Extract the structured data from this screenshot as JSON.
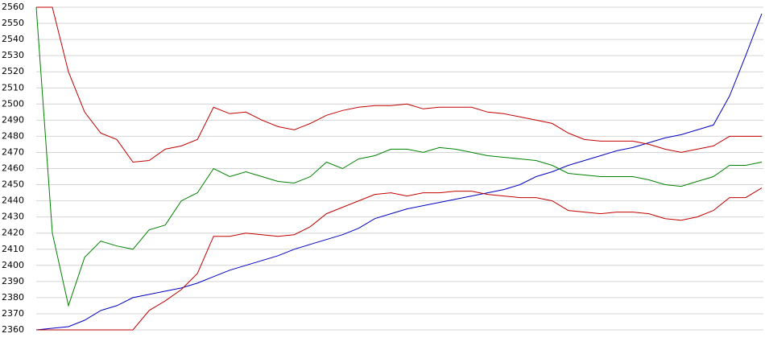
{
  "chart_data": {
    "type": "line",
    "ylim": [
      2360,
      2560
    ],
    "yticks": [
      2360,
      2370,
      2380,
      2390,
      2400,
      2410,
      2420,
      2430,
      2440,
      2450,
      2460,
      2470,
      2480,
      2490,
      2500,
      2510,
      2520,
      2530,
      2540,
      2550,
      2560
    ],
    "grid": true,
    "series": [
      {
        "color": "#0000c0",
        "values": [
          2360,
          2361,
          2362,
          2366,
          2372,
          2375,
          2380,
          2382,
          2384,
          2386,
          2389,
          2393,
          2397,
          2400,
          2403,
          2406,
          2410,
          2413,
          2416,
          2419,
          2423,
          2429,
          2432,
          2435,
          2437,
          2439,
          2441,
          2443,
          2445,
          2447,
          2450,
          2455,
          2458,
          2462,
          2465,
          2468,
          2471,
          2473,
          2476,
          2479,
          2481,
          2484,
          2487,
          2505,
          2530,
          2556
        ]
      },
      {
        "color": "#008000",
        "values": [
          2560,
          2420,
          2375,
          2405,
          2415,
          2412,
          2410,
          2422,
          2425,
          2440,
          2445,
          2460,
          2455,
          2458,
          2455,
          2452,
          2451,
          2455,
          2464,
          2460,
          2466,
          2468,
          2472,
          2472,
          2470,
          2473,
          2472,
          2470,
          2468,
          2467,
          2466,
          2465,
          2462,
          2457,
          2456,
          2455,
          2455,
          2455,
          2453,
          2450,
          2449,
          2452,
          2455,
          2462,
          2462,
          2464
        ]
      },
      {
        "color": "#c00000",
        "values": [
          2560,
          2560,
          2520,
          2495,
          2482,
          2478,
          2464,
          2465,
          2472,
          2474,
          2478,
          2498,
          2494,
          2495,
          2490,
          2486,
          2484,
          2488,
          2493,
          2496,
          2498,
          2499,
          2499,
          2500,
          2497,
          2498,
          2498,
          2498,
          2495,
          2494,
          2492,
          2490,
          2488,
          2482,
          2478,
          2477,
          2477,
          2477,
          2475,
          2472,
          2470,
          2472,
          2474,
          2480,
          2480,
          2480
        ]
      },
      {
        "color": "#c00000",
        "values": [
          2360,
          2360,
          2360,
          2360,
          2360,
          2360,
          2360,
          2372,
          2378,
          2385,
          2395,
          2418,
          2418,
          2420,
          2419,
          2418,
          2419,
          2424,
          2432,
          2436,
          2440,
          2444,
          2445,
          2443,
          2445,
          2445,
          2446,
          2446,
          2444,
          2443,
          2442,
          2442,
          2440,
          2434,
          2433,
          2432,
          2433,
          2433,
          2432,
          2429,
          2428,
          2430,
          2434,
          2442,
          2442,
          2448
        ]
      }
    ]
  }
}
